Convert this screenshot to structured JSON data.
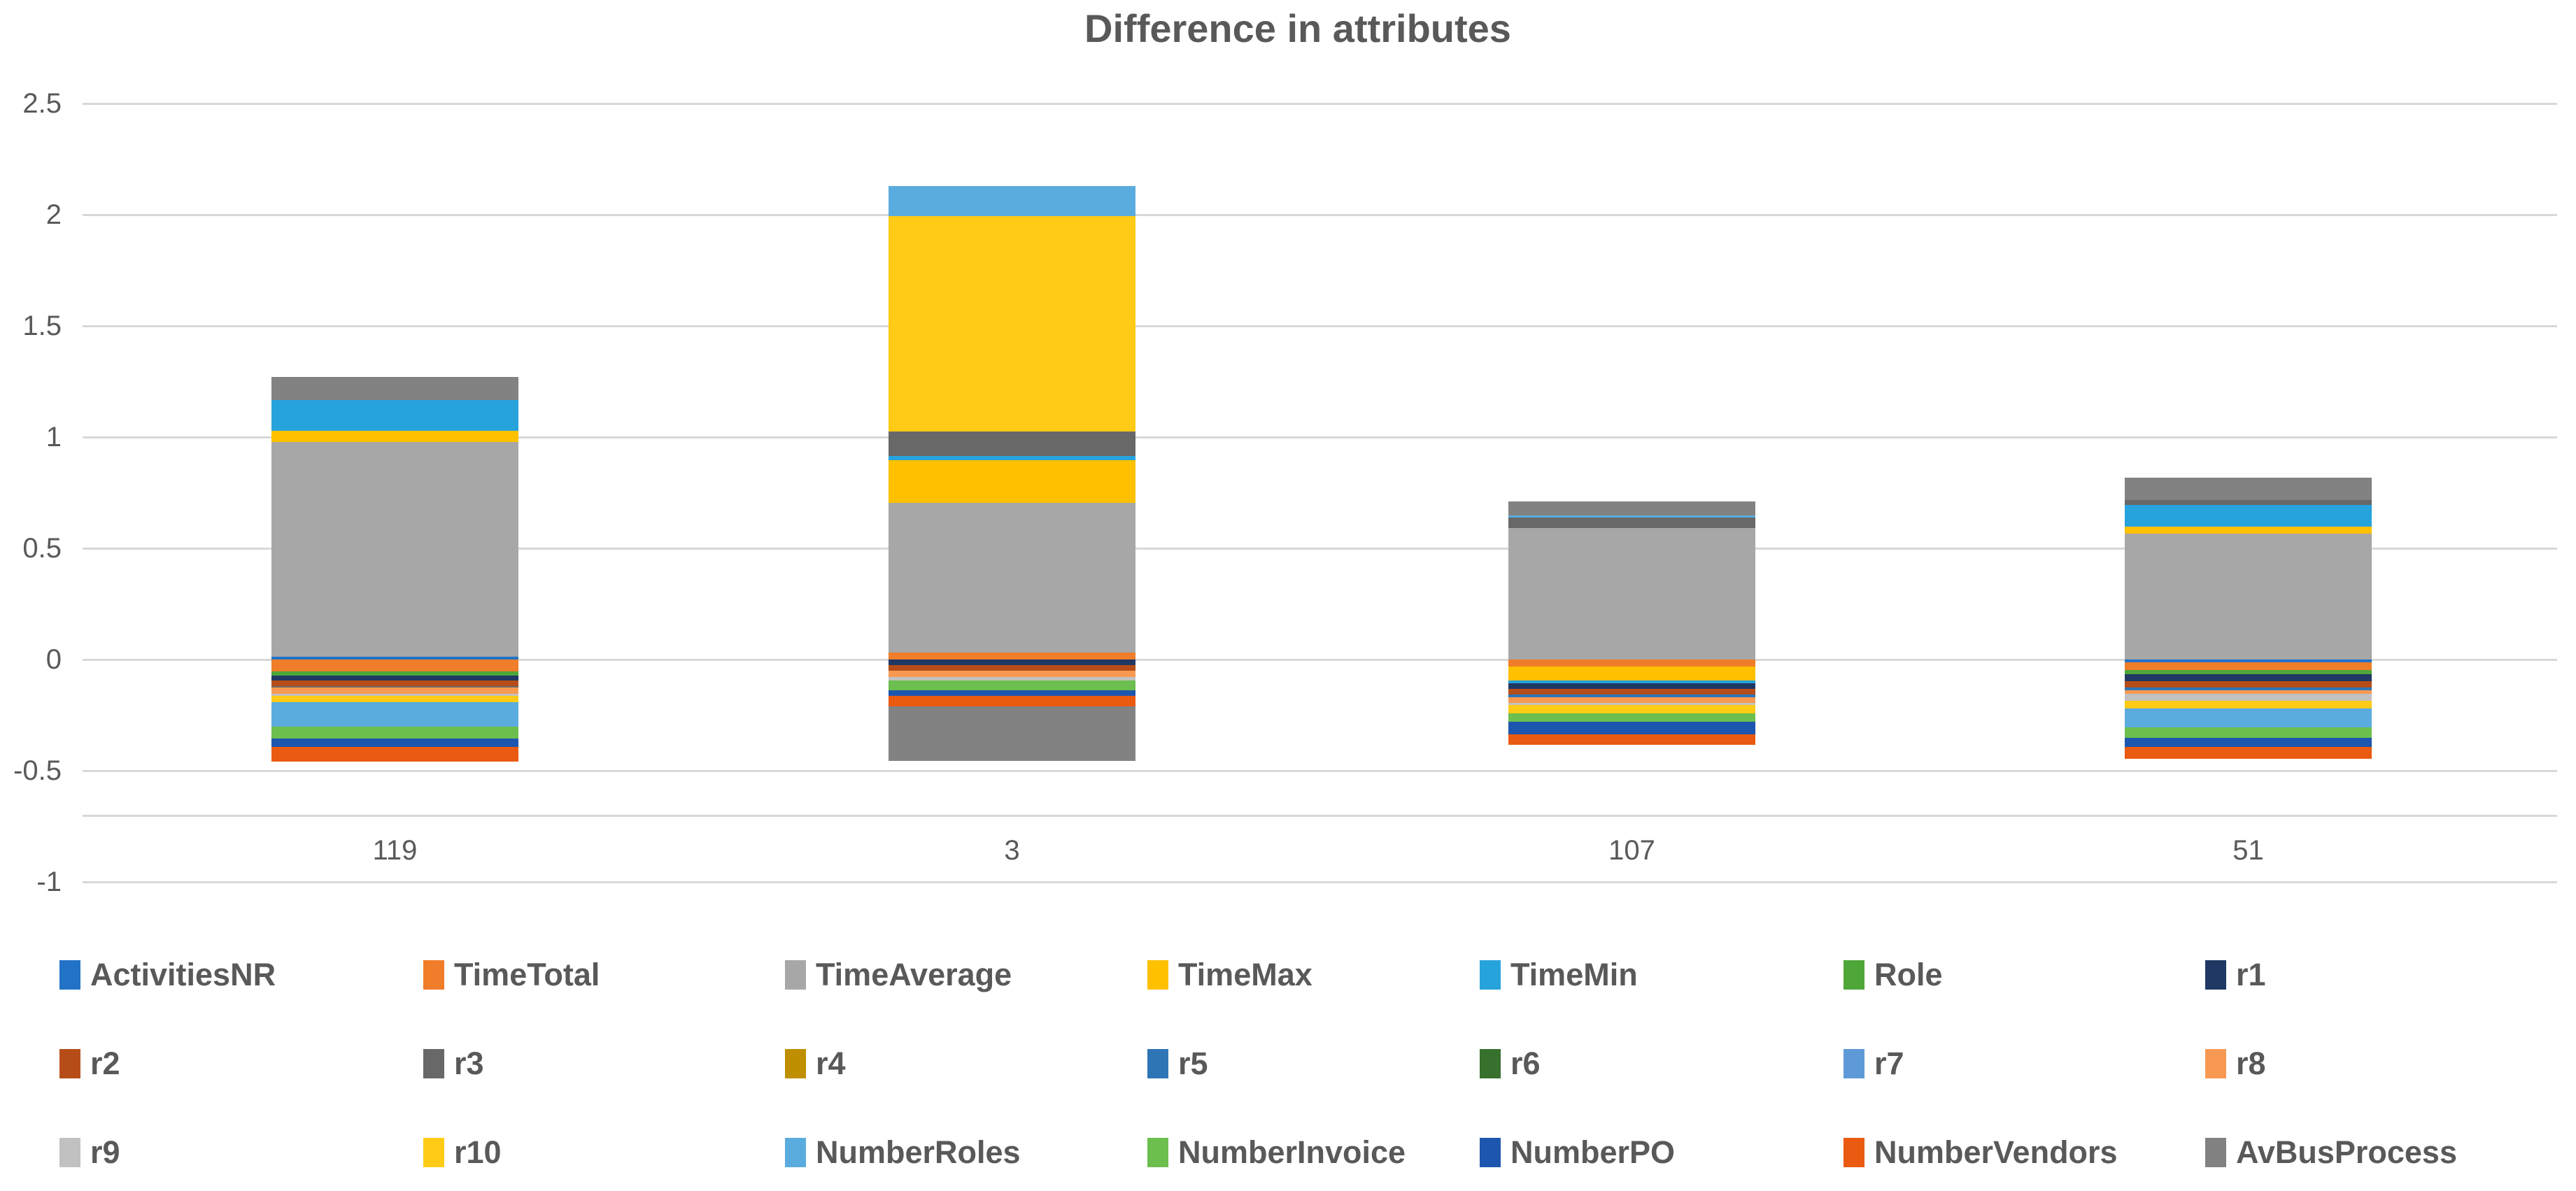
{
  "chart_data": {
    "type": "bar",
    "stacked": true,
    "title": "Difference in attributes",
    "categories": [
      "119",
      "3",
      "107",
      "51"
    ],
    "series": [
      {
        "name": "ActivitiesNR",
        "color": "#2272C8",
        "values": [
          0.012,
          0.0,
          0.0,
          -0.013
        ]
      },
      {
        "name": "TimeTotal",
        "color": "#F07D29",
        "values": [
          -0.055,
          0.031,
          -0.031,
          -0.035
        ]
      },
      {
        "name": "TimeAverage",
        "color": "#A7A7A7",
        "values": [
          0.966,
          0.673,
          0.591,
          0.566
        ]
      },
      {
        "name": "TimeMax",
        "color": "#FFC000",
        "values": [
          0.05,
          0.192,
          -0.063,
          0.031
        ]
      },
      {
        "name": "TimeMin",
        "color": "#27A3DC",
        "values": [
          0.139,
          0.019,
          -0.013,
          0.098
        ]
      },
      {
        "name": "Role",
        "color": "#4FA639",
        "values": [
          -0.016,
          0.0,
          0.0,
          -0.018
        ]
      },
      {
        "name": "r1",
        "color": "#1F3864",
        "values": [
          -0.022,
          -0.025,
          -0.025,
          -0.031
        ]
      },
      {
        "name": "r2",
        "color": "#B64D18",
        "values": [
          -0.028,
          -0.025,
          -0.025,
          -0.028
        ]
      },
      {
        "name": "r3",
        "color": "#686868",
        "values": [
          -0.006,
          0.11,
          0.047,
          0.022
        ]
      },
      {
        "name": "r4",
        "color": "#BF8F00",
        "values": [
          0.0,
          0.0,
          0.0,
          0.0
        ]
      },
      {
        "name": "r5",
        "color": "#2E75B6",
        "values": [
          0.0,
          0.0,
          -0.013,
          -0.013
        ]
      },
      {
        "name": "r6",
        "color": "#38702E",
        "values": [
          0.0,
          0.0,
          0.0,
          0.0
        ]
      },
      {
        "name": "r7",
        "color": "#5F9AD8",
        "values": [
          0.0,
          0.0,
          0.0,
          0.0
        ]
      },
      {
        "name": "r8",
        "color": "#F79952",
        "values": [
          -0.028,
          -0.028,
          -0.025,
          -0.015
        ]
      },
      {
        "name": "r9",
        "color": "#C1C1C1",
        "values": [
          -0.009,
          -0.016,
          -0.009,
          -0.032
        ]
      },
      {
        "name": "r10",
        "color": "#FFCB16",
        "values": [
          -0.028,
          0.969,
          -0.038,
          -0.035
        ]
      },
      {
        "name": "NumberRoles",
        "color": "#5BACDE",
        "values": [
          -0.11,
          0.136,
          0.01,
          -0.085
        ]
      },
      {
        "name": "NumberInvoice",
        "color": "#6CBF4E",
        "values": [
          -0.054,
          -0.044,
          -0.038,
          -0.047
        ]
      },
      {
        "name": "NumberPO",
        "color": "#1C56AE",
        "values": [
          -0.038,
          -0.026,
          -0.057,
          -0.041
        ]
      },
      {
        "name": "NumberVendors",
        "color": "#EA5A11",
        "values": [
          -0.065,
          -0.047,
          -0.047,
          -0.053
        ]
      },
      {
        "name": "AvBusProcess",
        "color": "#828282",
        "values": [
          0.103,
          -0.245,
          0.062,
          0.1
        ]
      }
    ],
    "y_axis": {
      "min": -1,
      "max": 2.5,
      "tick_step": 0.5,
      "ticks": [
        2.5,
        2,
        1.5,
        1,
        0.5,
        0,
        -0.5,
        -1
      ],
      "extra_gridline_value": -0.7
    },
    "grid": true,
    "legend_position": "bottom",
    "text_color": "#595959",
    "gridline_color": "#D8D8D8"
  }
}
